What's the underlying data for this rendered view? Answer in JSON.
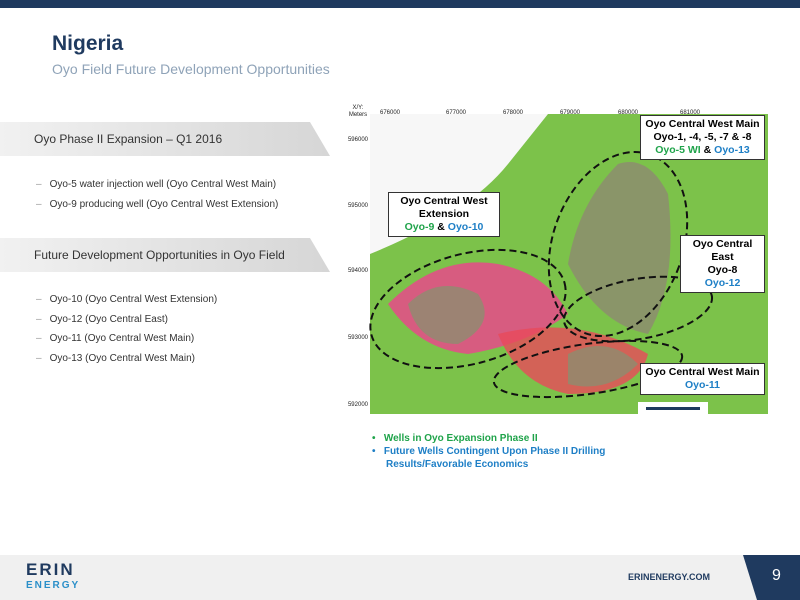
{
  "header": {
    "title": "Nigeria",
    "subtitle": "Oyo Field Future Development Opportunities"
  },
  "sections": [
    {
      "heading": "Oyo Phase II Expansion – Q1 2016",
      "items": [
        "Oyo-5 water injection well (Oyo Central West Main)",
        "Oyo-9 producing well (Oyo Central West Extension)"
      ]
    },
    {
      "heading": "Future Development Opportunities in Oyo Field",
      "items": [
        "Oyo-10 (Oyo Central West Extension)",
        "Oyo-12 (Oyo Central East)",
        "Oyo-11 (Oyo Central West Main)",
        "Oyo-13 (Oyo Central West Main)"
      ]
    }
  ],
  "map": {
    "axis_label": [
      "X/Y:",
      "Meters"
    ],
    "xticks": [
      "676000",
      "677000",
      "678000",
      "679000",
      "680000",
      "681000"
    ],
    "yticks": [
      "596000",
      "595000",
      "594000",
      "593000",
      "592000"
    ],
    "callouts": [
      {
        "lines": [
          "Oyo Central West Main",
          "Oyo-1, -4, -5, -7 & -8"
        ],
        "wells": [
          {
            "text": "Oyo-5 WI",
            "color": "#1fa34a"
          },
          {
            "text": "&",
            "color": "#000000"
          },
          {
            "text": "Oyo-13",
            "color": "#1e7fc6"
          }
        ]
      },
      {
        "lines": [
          "Oyo Central West",
          "Extension"
        ],
        "wells": [
          {
            "text": "Oyo-9",
            "color": "#1fa34a"
          },
          {
            "text": "&",
            "color": "#000000"
          },
          {
            "text": "Oyo-10",
            "color": "#1e7fc6"
          }
        ]
      },
      {
        "lines": [
          "Oyo Central East",
          "Oyo-8"
        ],
        "wells": [
          {
            "text": "Oyo-12",
            "color": "#1e7fc6"
          }
        ]
      },
      {
        "lines": [
          "Oyo Central West Main"
        ],
        "wells": [
          {
            "text": "Oyo-11",
            "color": "#1e7fc6"
          }
        ]
      }
    ]
  },
  "legend": [
    {
      "text": "Wells in Oyo Expansion Phase II",
      "color": "#1fa34a"
    },
    {
      "text": "Future Wells Contingent Upon Phase II Drilling Results/Favorable Economics",
      "color": "#1e7fc6"
    }
  ],
  "footer": {
    "logo": [
      "ERIN",
      "ENERGY"
    ],
    "url": "ERINENERGY.COM",
    "page": "9"
  }
}
